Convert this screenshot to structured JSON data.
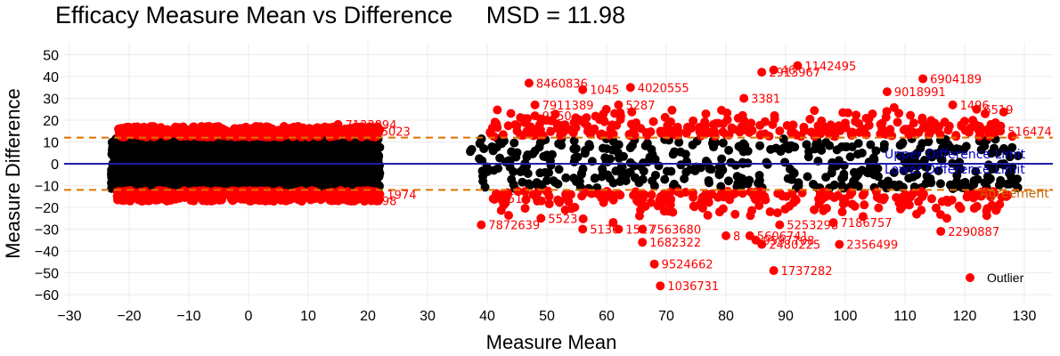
{
  "colors": {
    "outlier": "#ff0000",
    "normal": "#000000",
    "mean_line": "#1f1fa8",
    "limit_line": "#e07000",
    "ref_label": "#0000cc",
    "limit_label": "#c86400",
    "grid": "#ebebeb"
  },
  "chart_data": {
    "type": "scatter",
    "title": "Efficacy Measure Mean vs Difference     MSD = 11.98",
    "xlabel": "Measure Mean",
    "ylabel": "Measure Difference",
    "xlim": [
      -30,
      135
    ],
    "ylim": [
      -62,
      52
    ],
    "xticks": [
      -30,
      -20,
      -10,
      0,
      10,
      20,
      30,
      40,
      50,
      60,
      70,
      80,
      90,
      100,
      110,
      120,
      130
    ],
    "yticks": [
      50,
      40,
      30,
      20,
      10,
      0,
      -10,
      -20,
      -30,
      -40,
      -50,
      -60
    ],
    "grid": true,
    "mean_difference": 0,
    "upper_limit": 11.98,
    "lower_limit": -11.98,
    "reference_labels": [
      "Upper Difference Limit",
      "Lower Difference Limit",
      "Agreement"
    ],
    "legend": {
      "position": "bottom-right",
      "entries": [
        "Outlier"
      ]
    },
    "labeled_outliers": [
      {
        "x": 47,
        "y": 37,
        "label": "8460836"
      },
      {
        "x": 48,
        "y": 27,
        "label": "7911389"
      },
      {
        "x": 56,
        "y": 34,
        "label": "1045"
      },
      {
        "x": 64,
        "y": 35,
        "label": "4020555"
      },
      {
        "x": 62,
        "y": 27,
        "label": "5287"
      },
      {
        "x": 83,
        "y": 30,
        "label": "3381"
      },
      {
        "x": 92,
        "y": 45,
        "label": "1142495"
      },
      {
        "x": 86,
        "y": 42,
        "label": "2913967"
      },
      {
        "x": 88,
        "y": 43,
        "label": "46"
      },
      {
        "x": 107,
        "y": 33,
        "label": "9018991"
      },
      {
        "x": 113,
        "y": 39,
        "label": "6904189"
      },
      {
        "x": 118,
        "y": 27,
        "label": "1496"
      },
      {
        "x": 122,
        "y": 25,
        "label": "6519"
      },
      {
        "x": 15,
        "y": 18,
        "label": "7133894"
      },
      {
        "x": 21,
        "y": 15,
        "label": "5023"
      },
      {
        "x": 45,
        "y": 15,
        "label": "5823"
      },
      {
        "x": 48,
        "y": 22,
        "label": "9250"
      },
      {
        "x": 126,
        "y": 15,
        "label": "516474"
      },
      {
        "x": 41,
        "y": -16,
        "label": "1510"
      },
      {
        "x": 39,
        "y": -28,
        "label": "7872639"
      },
      {
        "x": 49,
        "y": -25,
        "label": "5523"
      },
      {
        "x": 56,
        "y": -30,
        "label": "5136"
      },
      {
        "x": 62,
        "y": -30,
        "label": "1517"
      },
      {
        "x": 66,
        "y": -30,
        "label": "7563680"
      },
      {
        "x": 66,
        "y": -36,
        "label": "1682322"
      },
      {
        "x": 68,
        "y": -46,
        "label": "9524662"
      },
      {
        "x": 69,
        "y": -56,
        "label": "1036731"
      },
      {
        "x": 80,
        "y": -33,
        "label": "8"
      },
      {
        "x": 84,
        "y": -33,
        "label": "5606741"
      },
      {
        "x": 86,
        "y": -37,
        "label": "2480225"
      },
      {
        "x": 85,
        "y": -35,
        "label": "9597708"
      },
      {
        "x": 89,
        "y": -28,
        "label": "5253298"
      },
      {
        "x": 88,
        "y": -49,
        "label": "1737282"
      },
      {
        "x": 98,
        "y": -27,
        "label": "7186757"
      },
      {
        "x": 99,
        "y": -37,
        "label": "2356499"
      },
      {
        "x": 116,
        "y": -31,
        "label": "2290887"
      },
      {
        "x": -22,
        "y": -15,
        "label": "6675063"
      },
      {
        "x": 15,
        "y": -17,
        "label": "9768898"
      },
      {
        "x": 22,
        "y": -14,
        "label": "1974"
      }
    ]
  }
}
